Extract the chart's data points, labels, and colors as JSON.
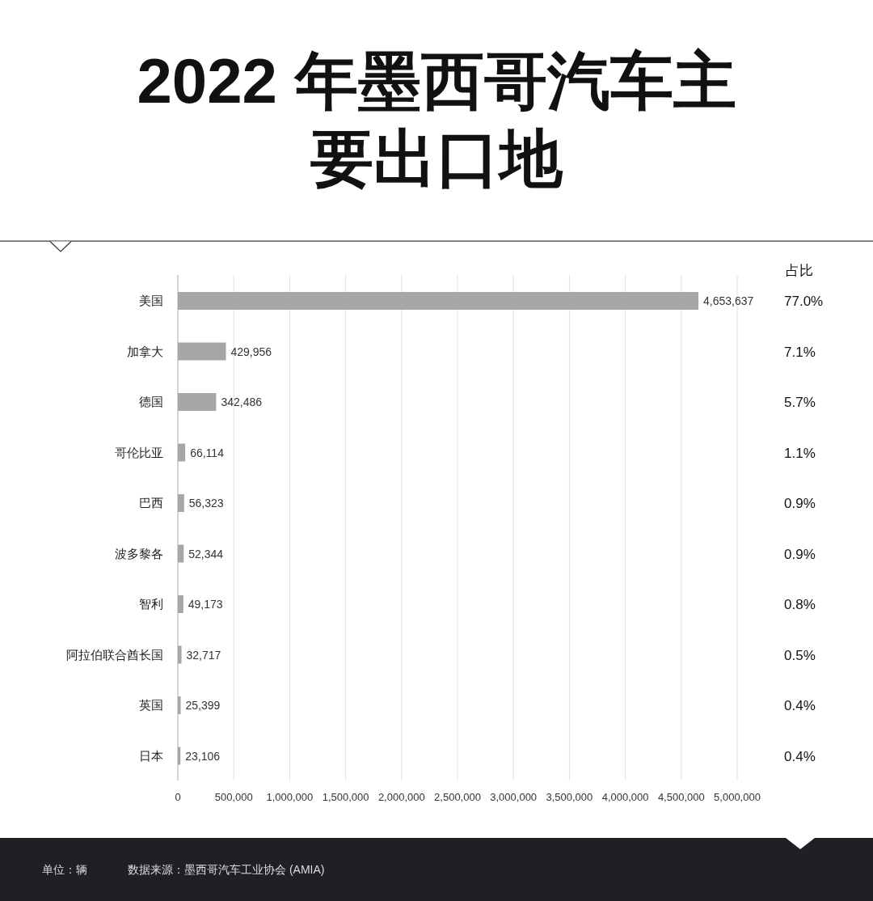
{
  "chart_data": {
    "type": "bar",
    "orientation": "horizontal",
    "title": "2022 年墨西哥汽车主要出口地",
    "categories": [
      "美国",
      "加拿大",
      "德国",
      "哥伦比亚",
      "巴西",
      "波多黎各",
      "智利",
      "阿拉伯联合酋长国",
      "英国",
      "日本"
    ],
    "series": [
      {
        "color": "#a6a6a6",
        "values": [
          4653637,
          429956,
          342486,
          66114,
          56323,
          52344,
          49173,
          32717,
          25399,
          23106
        ],
        "value_labels": [
          "4,653,637",
          "429,956",
          "342,486",
          "66,114",
          "56,323",
          "52,344",
          "49,173",
          "32,717",
          "25,399",
          "23,106"
        ]
      }
    ],
    "xlim": [
      0,
      5000000
    ],
    "xticks": [
      0,
      {
        "value": 500000,
        "label": "500,000"
      },
      {
        "value": 1000000,
        "label": "1,000,000"
      },
      {
        "value": 1500000,
        "label": "1,500,000"
      },
      {
        "value": 2000000,
        "label": "2,000,000"
      },
      {
        "value": 2500000,
        "label": "2,500,000"
      },
      {
        "value": 3000000,
        "label": "3,000,000"
      },
      {
        "value": 3500000,
        "label": "3,500,000"
      },
      {
        "value": 4000000,
        "label": "4,000,000"
      },
      {
        "value": 4500000,
        "label": "4,500,000"
      },
      {
        "value": 5000000,
        "label": "5,000,000"
      }
    ],
    "grid": "x",
    "annotations": [
      "占比",
      "77.0%",
      "7.1%",
      "5.7%",
      "1.1%",
      "0.9%",
      "0.9%",
      "0.8%",
      "0.5%",
      "0.4%",
      "0.4%",
      "单位：辆",
      "数据来源：墨西哥汽车工业协会 (AMIA)"
    ]
  }
}
